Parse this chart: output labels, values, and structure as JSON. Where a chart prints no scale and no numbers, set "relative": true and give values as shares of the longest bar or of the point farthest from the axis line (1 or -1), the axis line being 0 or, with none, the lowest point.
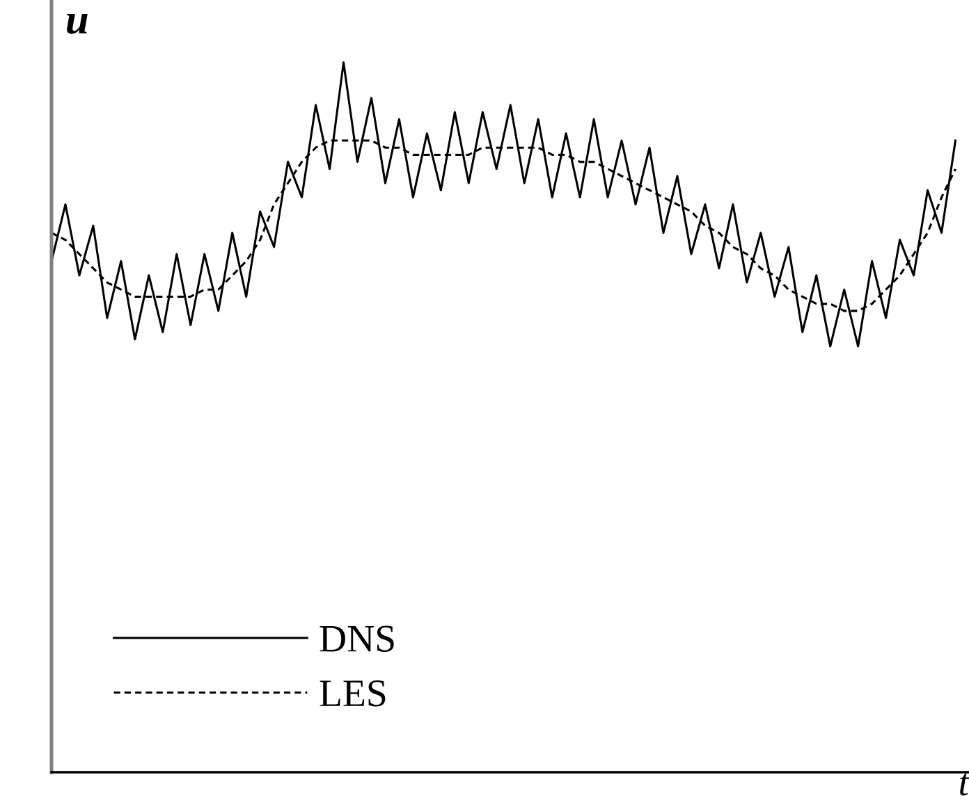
{
  "chart_data": {
    "type": "line",
    "relative": true,
    "xlabel": "t",
    "ylabel": "u",
    "legend": "bottom left",
    "categories": [
      null,
      null,
      null,
      null,
      null,
      null,
      null,
      null,
      null,
      null,
      null,
      null,
      null,
      null,
      null,
      null,
      null,
      null,
      null,
      null,
      null,
      null,
      null,
      null,
      null,
      null,
      null,
      null,
      null,
      null,
      null,
      null,
      null,
      null,
      null,
      null,
      null,
      null,
      null,
      null,
      null,
      null,
      null,
      null,
      null,
      null,
      null,
      null,
      null,
      null,
      null,
      null,
      null,
      null,
      null,
      null,
      null,
      null,
      null,
      null,
      null,
      null,
      null,
      null,
      null,
      null
    ],
    "series": [
      {
        "name": "DNS",
        "color": "#000000",
        "line_style": "solid",
        "values": [
          0.72,
          0.8,
          0.7,
          0.77,
          0.64,
          0.72,
          0.61,
          0.7,
          0.62,
          0.73,
          0.63,
          0.73,
          0.65,
          0.76,
          0.67,
          0.79,
          0.74,
          0.86,
          0.81,
          0.94,
          0.85,
          1.0,
          0.86,
          0.95,
          0.83,
          0.92,
          0.81,
          0.9,
          0.82,
          0.93,
          0.83,
          0.93,
          0.85,
          0.94,
          0.83,
          0.92,
          0.81,
          0.9,
          0.81,
          0.92,
          0.81,
          0.89,
          0.8,
          0.88,
          0.76,
          0.84,
          0.73,
          0.8,
          0.71,
          0.8,
          0.69,
          0.76,
          0.67,
          0.74,
          0.62,
          0.7,
          0.6,
          0.68,
          0.6,
          0.72,
          0.64,
          0.75,
          0.7,
          0.82,
          0.76,
          0.89
        ]
      },
      {
        "name": "LES",
        "color": "#000000",
        "line_style": "dashed",
        "values": [
          0.76,
          0.75,
          0.73,
          0.71,
          0.69,
          0.68,
          0.67,
          0.67,
          0.67,
          0.67,
          0.67,
          0.68,
          0.68,
          0.7,
          0.72,
          0.75,
          0.8,
          0.83,
          0.86,
          0.88,
          0.89,
          0.89,
          0.89,
          0.89,
          0.88,
          0.88,
          0.87,
          0.87,
          0.87,
          0.87,
          0.87,
          0.88,
          0.88,
          0.88,
          0.88,
          0.88,
          0.87,
          0.87,
          0.86,
          0.86,
          0.85,
          0.84,
          0.83,
          0.82,
          0.81,
          0.8,
          0.79,
          0.77,
          0.76,
          0.74,
          0.73,
          0.71,
          0.7,
          0.68,
          0.67,
          0.66,
          0.66,
          0.65,
          0.65,
          0.66,
          0.68,
          0.7,
          0.73,
          0.76,
          0.81,
          0.85
        ]
      }
    ]
  }
}
